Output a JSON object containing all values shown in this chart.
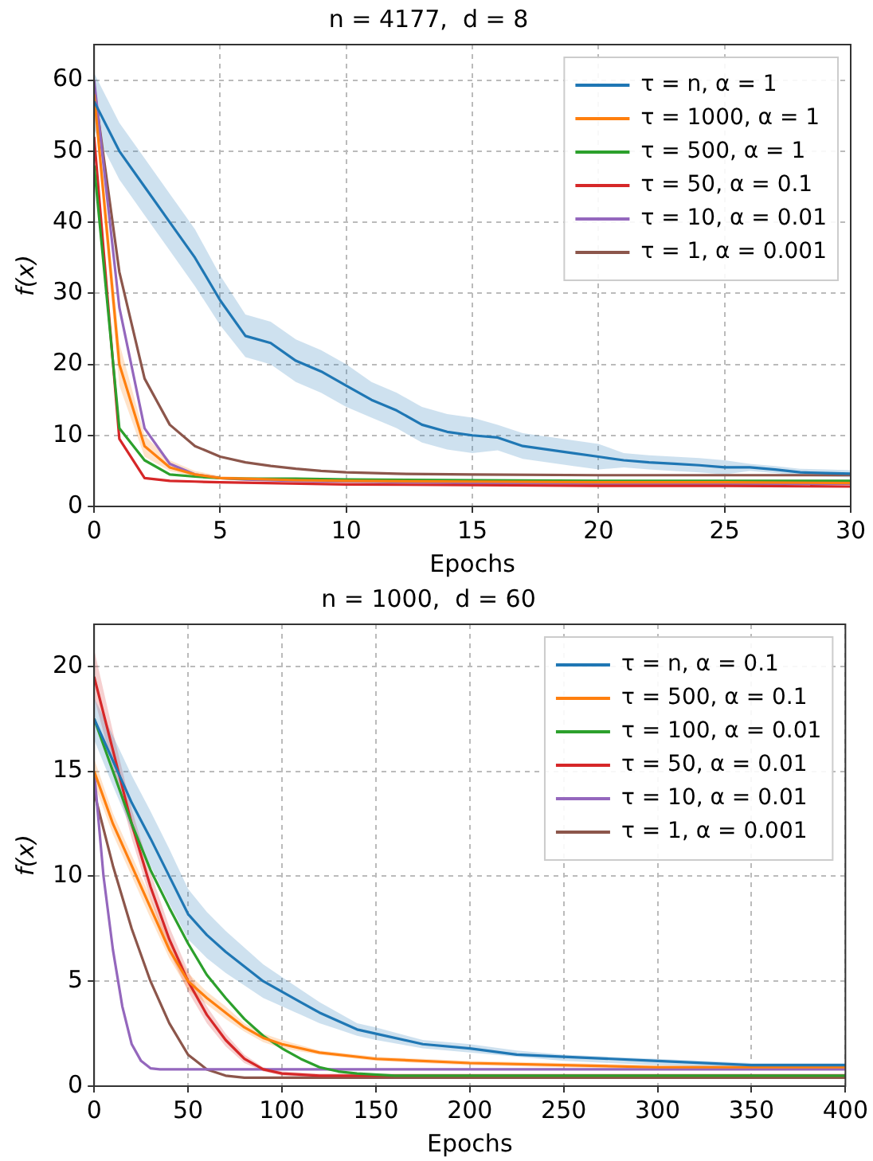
{
  "chart_data": [
    {
      "type": "line",
      "title": "n = 4177,  d = 8",
      "xlabel": "Epochs",
      "ylabel": "f(x)",
      "xlim": [
        0,
        30
      ],
      "xticks": [
        0,
        5,
        10,
        15,
        20,
        25,
        30
      ],
      "ylim": [
        0,
        65
      ],
      "yticks": [
        0,
        10,
        20,
        30,
        40,
        50,
        60
      ],
      "grid": true,
      "legend": "top right",
      "line_style": "solid",
      "marker": "none",
      "series": [
        {
          "name": "τ = n, α = 1",
          "color": "#1f77b4",
          "x": [
            0,
            1,
            2,
            3,
            4,
            5,
            6,
            7,
            8,
            9,
            10,
            11,
            12,
            13,
            14,
            15,
            16,
            17,
            18,
            19,
            20,
            21,
            22,
            23,
            24,
            25,
            26,
            27,
            28,
            29,
            30
          ],
          "values": [
            57,
            50,
            45,
            40,
            35,
            29,
            24,
            23,
            20.5,
            19,
            17,
            15,
            13.5,
            11.5,
            10.5,
            10,
            9.7,
            8.5,
            8,
            7.5,
            7,
            6.5,
            6.2,
            6,
            5.8,
            5.5,
            5.5,
            5.2,
            4.8,
            4.7,
            4.6
          ],
          "lower": [
            53,
            46,
            41,
            36,
            31,
            25.5,
            21,
            20,
            17.5,
            16,
            14,
            12.5,
            11,
            9,
            8,
            7.5,
            7.9,
            6.7,
            6.2,
            5.7,
            5.2,
            5.5,
            5.2,
            5,
            4.8,
            4.5,
            5,
            4.7,
            4.3,
            4.2,
            4.1
          ],
          "upper": [
            61,
            54,
            49,
            44,
            39,
            32.5,
            27,
            26,
            23.5,
            22,
            20,
            17.5,
            16,
            14,
            13,
            12.5,
            11.5,
            10.3,
            9.8,
            9.3,
            8.8,
            7.5,
            7.2,
            7,
            6.8,
            6.5,
            6,
            5.7,
            5.3,
            5.2,
            5.1
          ]
        },
        {
          "name": "τ = 1000, α = 1",
          "color": "#ff7f0e",
          "x": [
            0,
            1,
            2,
            3,
            4,
            5,
            6,
            8,
            10,
            15,
            20,
            25,
            30
          ],
          "values": [
            58,
            20,
            8.5,
            5.5,
            4.5,
            4,
            3.9,
            3.7,
            3.6,
            3.5,
            3.4,
            3.4,
            3.3
          ],
          "lower": [
            56,
            17,
            7,
            5,
            4.2,
            3.8,
            3.7,
            3.6,
            3.5,
            3.4,
            3.3,
            3.3,
            3.2
          ],
          "upper": [
            60,
            23,
            10,
            6.5,
            5,
            4.3,
            4.1,
            3.9,
            3.7,
            3.6,
            3.5,
            3.5,
            3.4
          ]
        },
        {
          "name": "τ = 500, α = 1",
          "color": "#2ca02c",
          "x": [
            0,
            1,
            2,
            3,
            4,
            5,
            6,
            8,
            10,
            15,
            20,
            25,
            30
          ],
          "values": [
            48,
            11,
            6.5,
            4.5,
            4.2,
            4,
            3.9,
            3.9,
            3.8,
            3.7,
            3.6,
            3.6,
            3.6
          ]
        },
        {
          "name": "τ = 50, α = 0.1",
          "color": "#d62728",
          "x": [
            0,
            1,
            2,
            3,
            4,
            5,
            10,
            15,
            20,
            25,
            30
          ],
          "values": [
            52,
            9.5,
            4,
            3.6,
            3.5,
            3.4,
            3.1,
            3,
            2.9,
            2.9,
            2.8
          ]
        },
        {
          "name": "τ = 10, α = 0.01",
          "color": "#9467bd",
          "x": [
            0,
            1,
            2,
            3,
            4,
            5,
            6,
            8,
            10,
            15,
            20,
            25,
            30
          ],
          "values": [
            60,
            28,
            11,
            6,
            4.5,
            4,
            3.8,
            3.6,
            3.5,
            3.3,
            3.2,
            3.2,
            3.2
          ]
        },
        {
          "name": "τ = 1, α = 0.001",
          "color": "#8c564b",
          "x": [
            0,
            1,
            2,
            3,
            4,
            5,
            6,
            7,
            8,
            9,
            10,
            12,
            15,
            20,
            25,
            30
          ],
          "values": [
            59,
            33,
            18,
            11.5,
            8.5,
            7,
            6.2,
            5.7,
            5.3,
            5,
            4.8,
            4.6,
            4.5,
            4.4,
            4.4,
            4.4
          ]
        }
      ]
    },
    {
      "type": "line",
      "title": "n = 1000,  d = 60",
      "xlabel": "Epochs",
      "ylabel": "f(x)",
      "xlim": [
        0,
        400
      ],
      "xticks": [
        0,
        50,
        100,
        150,
        200,
        250,
        300,
        350,
        400
      ],
      "ylim": [
        0,
        22
      ],
      "yticks": [
        0,
        5,
        10,
        15,
        20
      ],
      "grid": true,
      "legend": "top right",
      "line_style": "solid",
      "marker": "none",
      "series": [
        {
          "name": "τ = n, α = 0.1",
          "color": "#1f77b4",
          "x": [
            0,
            10,
            20,
            30,
            40,
            50,
            60,
            70,
            80,
            90,
            100,
            110,
            120,
            130,
            140,
            150,
            175,
            200,
            225,
            250,
            300,
            350,
            400
          ],
          "values": [
            17.5,
            15.5,
            13.5,
            11.8,
            10,
            8.2,
            7.2,
            6.4,
            5.7,
            5,
            4.5,
            4,
            3.5,
            3.1,
            2.7,
            2.5,
            2,
            1.8,
            1.5,
            1.4,
            1.2,
            1,
            1
          ],
          "lower": [
            16.5,
            14.3,
            12.2,
            10.5,
            8.7,
            7,
            6.1,
            5.4,
            4.8,
            4.2,
            3.8,
            3.4,
            3,
            2.7,
            2.4,
            2.2,
            1.8,
            1.6,
            1.4,
            1.2,
            1,
            0.9,
            0.8
          ],
          "upper": [
            18.5,
            16.7,
            14.8,
            13.1,
            11.3,
            9.4,
            8.3,
            7.4,
            6.6,
            5.8,
            5.2,
            4.6,
            4,
            3.5,
            3,
            2.8,
            2.2,
            2,
            1.7,
            1.5,
            1.3,
            1.1,
            1.1
          ]
        },
        {
          "name": "τ = 500, α = 0.1",
          "color": "#ff7f0e",
          "x": [
            0,
            10,
            20,
            30,
            40,
            50,
            60,
            70,
            80,
            90,
            100,
            120,
            150,
            200,
            250,
            300,
            400
          ],
          "values": [
            15,
            12.5,
            10.5,
            8.5,
            6.5,
            5,
            4.2,
            3.5,
            2.8,
            2.3,
            2,
            1.6,
            1.3,
            1.1,
            1,
            0.9,
            0.9
          ],
          "lower": [
            14.4,
            12,
            10,
            8,
            6.1,
            4.6,
            3.9,
            3.2,
            2.6,
            2.1,
            1.8,
            1.5,
            1.2,
            1,
            0.9,
            0.8,
            0.8
          ],
          "upper": [
            15.6,
            13,
            11,
            9,
            6.9,
            5.4,
            4.5,
            3.8,
            3,
            2.5,
            2.2,
            1.7,
            1.4,
            1.2,
            1.1,
            1,
            1
          ]
        },
        {
          "name": "τ = 100, α = 0.01",
          "color": "#2ca02c",
          "x": [
            0,
            10,
            20,
            30,
            40,
            50,
            60,
            70,
            80,
            90,
            100,
            110,
            120,
            130,
            140,
            160,
            400
          ],
          "values": [
            17.5,
            15,
            12.5,
            10.3,
            8.5,
            6.8,
            5.3,
            4.2,
            3.2,
            2.4,
            1.8,
            1.3,
            0.9,
            0.7,
            0.6,
            0.5,
            0.5
          ]
        },
        {
          "name": "τ = 50, α = 0.01",
          "color": "#d62728",
          "x": [
            0,
            10,
            20,
            30,
            40,
            50,
            60,
            70,
            80,
            90,
            100,
            120,
            400
          ],
          "values": [
            19.5,
            16,
            12.5,
            9.5,
            7,
            5,
            3.4,
            2.2,
            1.3,
            0.8,
            0.6,
            0.5,
            0.5
          ],
          "lower": [
            18.5,
            15.2,
            11.8,
            8.9,
            6.4,
            4.5,
            3,
            1.9,
            1.1,
            0.7,
            0.5,
            0.4,
            0.4
          ],
          "upper": [
            20.8,
            16.9,
            13.2,
            10.2,
            7.6,
            5.5,
            3.8,
            2.5,
            1.5,
            0.9,
            0.7,
            0.6,
            0.6
          ]
        },
        {
          "name": "τ = 10, α = 0.01",
          "color": "#9467bd",
          "x": [
            0,
            5,
            10,
            15,
            20,
            25,
            30,
            35,
            400
          ],
          "values": [
            15,
            10,
            6.5,
            3.8,
            2,
            1.2,
            0.85,
            0.8,
            0.8
          ]
        },
        {
          "name": "τ = 1, α = 0.001",
          "color": "#8c564b",
          "x": [
            0,
            10,
            20,
            30,
            40,
            50,
            60,
            70,
            80,
            400
          ],
          "values": [
            14,
            10.5,
            7.5,
            5,
            3,
            1.5,
            0.8,
            0.5,
            0.4,
            0.4
          ]
        }
      ]
    }
  ]
}
